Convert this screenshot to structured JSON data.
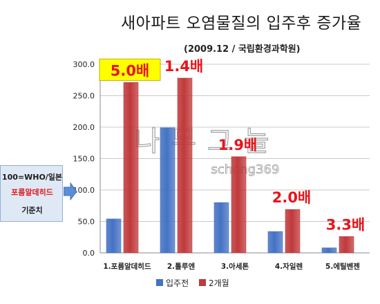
{
  "chart_data": {
    "type": "bar",
    "title": "새아파트 오염물질의 입주후 증가율",
    "subtitle": "(2009.12 / 국립환경과학원)",
    "categories": [
      "1.포름알데히드",
      "2.톨루엔",
      "3.아세톤",
      "4.자일렌",
      "5.에틸벤젠"
    ],
    "series": [
      {
        "name": "입주전",
        "values": [
          54,
          199,
          80,
          34,
          8
        ],
        "color": "#4472c4"
      },
      {
        "name": "2개월",
        "values": [
          271,
          278,
          153,
          69,
          26
        ],
        "color": "#c0393b"
      }
    ],
    "ratio_labels": [
      "5.0배",
      "1.4배",
      "1.9배",
      "2.0배",
      "3.3배"
    ],
    "highlight_color": "#ffff00",
    "ylim": [
      0,
      300
    ],
    "yticks": [
      "0.0",
      "50.0",
      "100.0",
      "150.0",
      "200.0",
      "250.0",
      "300.0"
    ],
    "grid": true,
    "legend_position": "bottom"
  },
  "sidebox": {
    "line1": "100=WHO/일본",
    "line2": "포름알데히드",
    "line3": "기준치"
  },
  "watermark": {
    "main": "나무그늘",
    "sub": "schong369"
  }
}
